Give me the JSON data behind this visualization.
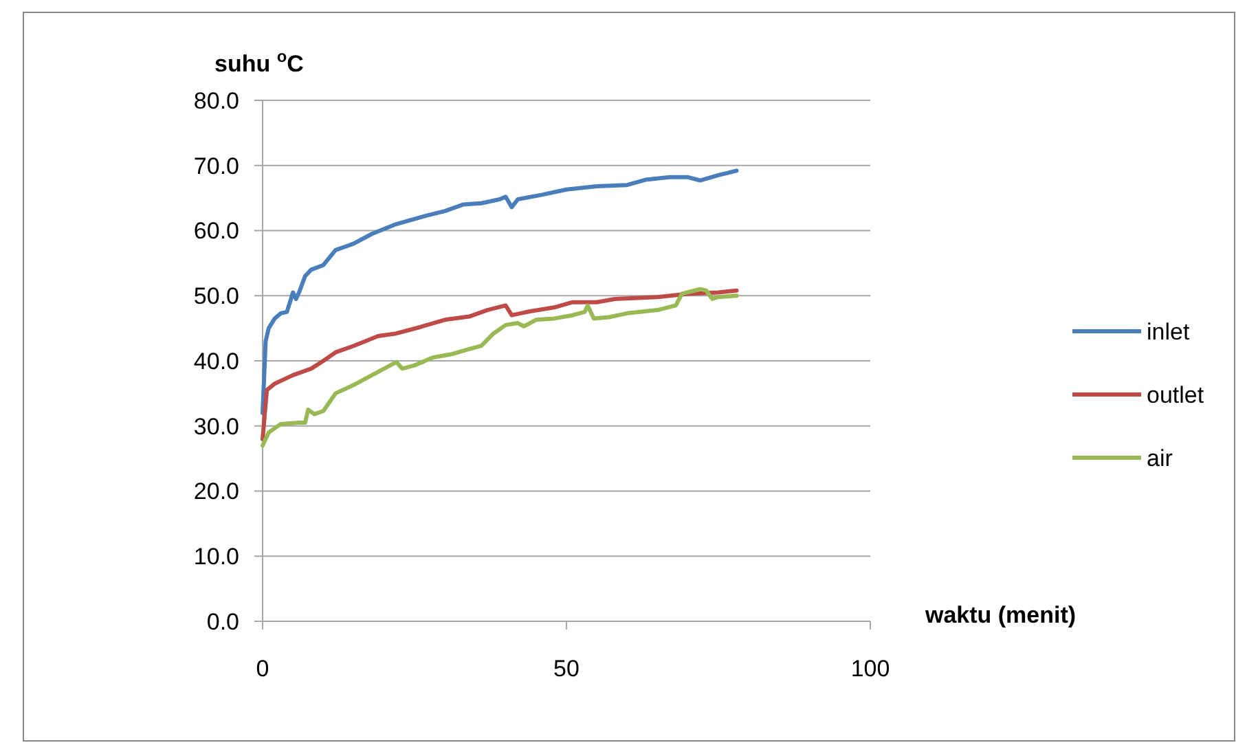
{
  "chart_data": {
    "type": "line",
    "xlabel": "waktu (menit)",
    "ylabel": "suhu $^{o}$C",
    "xlim": [
      0,
      100
    ],
    "xticks": [
      0,
      50,
      100
    ],
    "ylim": [
      0,
      80
    ],
    "yticks": [
      {
        "value": 0,
        "label": "0.0"
      },
      {
        "value": 10,
        "label": "10.0"
      },
      {
        "value": 20,
        "label": "20.0"
      },
      {
        "value": 30,
        "label": "30.0"
      },
      {
        "value": 40,
        "label": "40.0"
      },
      {
        "value": 50,
        "label": "50.0"
      },
      {
        "value": 60,
        "label": "60.0"
      },
      {
        "value": 70,
        "label": "70.0"
      },
      {
        "value": 80,
        "label": "80.0"
      }
    ],
    "grid": "y",
    "legend": "right",
    "marker": "none",
    "line_style": "solid",
    "series": [
      {
        "name": "inlet",
        "color": "#4a7ebb",
        "x": [
          0,
          0.5,
          1,
          2,
          3,
          4,
          5,
          5.5,
          6,
          7,
          8,
          10,
          12,
          15,
          18,
          22,
          27,
          30,
          33,
          36,
          39,
          40,
          41,
          42,
          46,
          50,
          55,
          60,
          63,
          67,
          70,
          72,
          75,
          78
        ],
        "values": [
          32,
          43,
          45,
          46.5,
          47.3,
          47.5,
          50.5,
          49.5,
          50.5,
          53,
          54,
          54.7,
          57,
          58,
          59.5,
          61,
          62.3,
          63,
          64,
          64.2,
          64.8,
          65.2,
          63.6,
          64.8,
          65.5,
          66.3,
          66.8,
          67,
          67.8,
          68.2,
          68.2,
          67.7,
          68.5,
          69.2
        ]
      },
      {
        "name": "outlet",
        "color": "#be4b48",
        "x": [
          0,
          0.7,
          2,
          5,
          8,
          10,
          12,
          15,
          19,
          22,
          26,
          30,
          34,
          37,
          40,
          41,
          44,
          48,
          51,
          55,
          58,
          65,
          70,
          75,
          78
        ],
        "values": [
          28,
          35.5,
          36.5,
          37.8,
          38.8,
          40,
          41.3,
          42.3,
          43.8,
          44.2,
          45.2,
          46.3,
          46.8,
          47.8,
          48.5,
          47,
          47.6,
          48.2,
          49,
          49,
          49.5,
          49.8,
          50.3,
          50.5,
          50.8
        ]
      },
      {
        "name": "air",
        "color": "#98b954",
        "x": [
          0,
          1,
          3,
          6,
          7,
          7.5,
          8.5,
          10,
          12,
          15,
          18,
          22,
          23,
          25,
          28,
          31,
          34,
          36,
          38,
          40,
          42,
          43,
          45,
          48,
          51,
          53,
          53.5,
          54.5,
          57,
          60,
          65,
          68,
          69,
          72,
          73,
          74,
          75,
          78
        ],
        "values": [
          27,
          29,
          30.3,
          30.5,
          30.5,
          32.5,
          31.8,
          32.3,
          35,
          36.3,
          37.8,
          39.8,
          38.8,
          39.3,
          40.5,
          41,
          41.8,
          42.3,
          44.2,
          45.5,
          45.8,
          45.3,
          46.3,
          46.5,
          47,
          47.5,
          48.5,
          46.5,
          46.7,
          47.3,
          47.8,
          48.5,
          50.3,
          51,
          50.8,
          49.5,
          49.8,
          50
        ]
      }
    ]
  }
}
